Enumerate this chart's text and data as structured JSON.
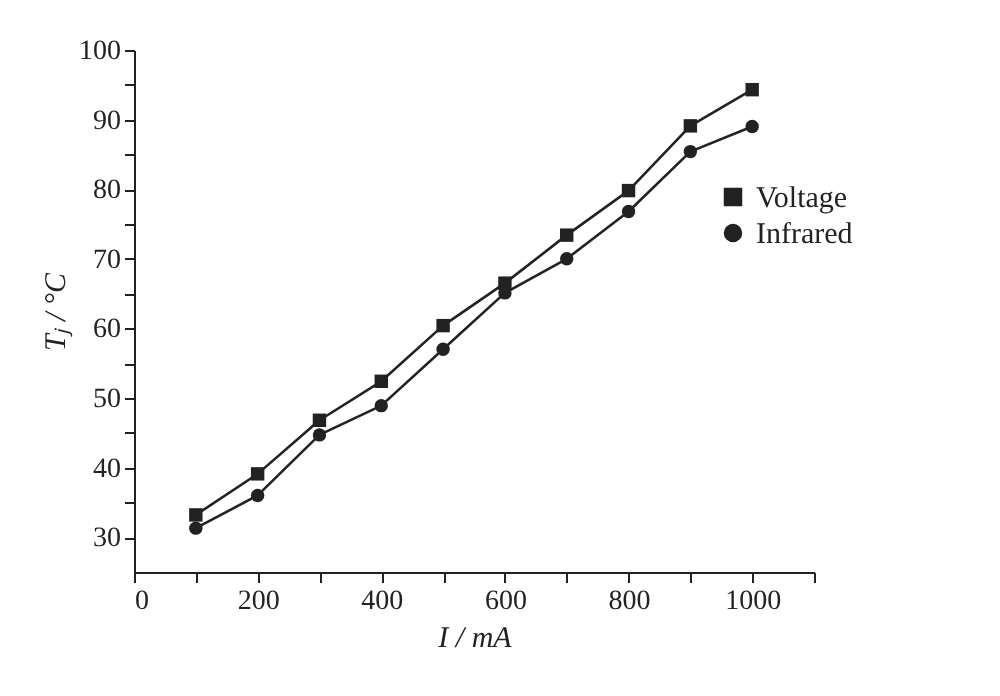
{
  "chart_data": {
    "type": "line",
    "xlabel": "I / mA",
    "ylabel": "Tⱼ / °C",
    "x": [
      100,
      200,
      300,
      400,
      500,
      600,
      700,
      800,
      900,
      1000
    ],
    "series": [
      {
        "name": "Voltage",
        "color": "#222222",
        "marker": "square",
        "values": [
          33.2,
          39.1,
          46.8,
          52.4,
          60.4,
          66.5,
          73.4,
          79.8,
          89.1,
          94.3
        ]
      },
      {
        "name": "Infrared",
        "color": "#222222",
        "marker": "circle",
        "values": [
          31.3,
          36.0,
          44.7,
          48.9,
          57.0,
          65.1,
          70.0,
          76.8,
          85.4,
          89.0
        ]
      }
    ],
    "xlim": [
      0,
      1100
    ],
    "xticks": [
      0,
      {
        "value": 100,
        "label": null
      },
      200,
      {
        "value": 300,
        "label": null
      },
      400,
      {
        "value": 500,
        "label": null
      },
      600,
      {
        "value": 700,
        "label": null
      },
      800,
      {
        "value": 900,
        "label": null
      },
      1000,
      {
        "value": 1100,
        "label": null
      }
    ],
    "ylim": [
      25,
      100
    ],
    "yticks": [
      30,
      {
        "value": 35,
        "label": null
      },
      40,
      {
        "value": 45,
        "label": null
      },
      50,
      {
        "value": 55,
        "label": null
      },
      60,
      {
        "value": 65,
        "label": null
      },
      70,
      {
        "value": 75,
        "label": null
      },
      80,
      {
        "value": 85,
        "label": null
      },
      90,
      {
        "value": 95,
        "label": null
      },
      100
    ],
    "grid": false,
    "legend": "right",
    "line_style": "solid"
  }
}
